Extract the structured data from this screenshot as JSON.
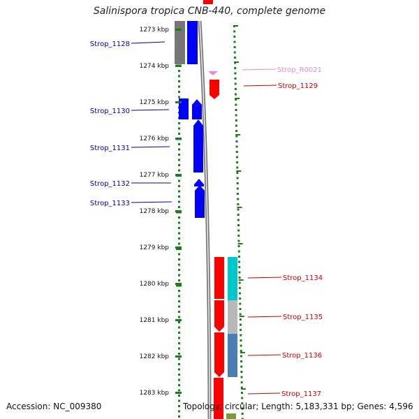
{
  "title": "Salinispora tropica CNB-440, complete genome",
  "footer": {
    "accession": "Accession: NC_009380",
    "summary": "Topology: circular; Length: 5,183,331 bp; Genes: 4,596"
  },
  "colors": {
    "tick": "#1a7f1a",
    "gray_gene": "#777777",
    "blue_gene": "#0000ff",
    "red_gene": "#ff0000",
    "pink_gene": "#ee88cc",
    "cyan_block": "#00c8c8",
    "silver_block": "#b8b8b8",
    "steel_block": "#4a7eb4",
    "olive_block": "#7a9a3a",
    "backbone": "#888888"
  },
  "scale": {
    "labels": [
      "1273 kbp",
      "1274 kbp",
      "1275 kbp",
      "1276 kbp",
      "1277 kbp",
      "1278 kbp",
      "1279 kbp",
      "1280 kbp",
      "1281 kbp",
      "1282 kbp",
      "1283 kbp"
    ]
  },
  "gene_labels": {
    "left": [
      "Strop_1128",
      "Strop_1130",
      "Strop_1131",
      "Strop_1132",
      "Strop_1133"
    ],
    "right": [
      "Strop_R0021",
      "Strop_1129",
      "Strop_1134",
      "Strop_1135",
      "Strop_1136",
      "Strop_1137"
    ]
  }
}
